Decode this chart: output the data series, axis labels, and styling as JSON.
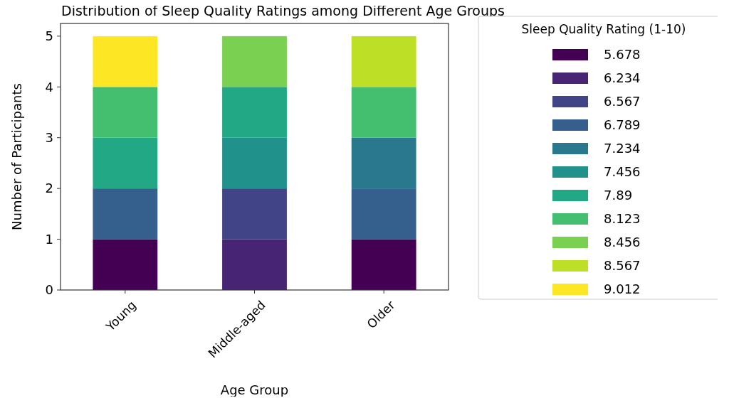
{
  "chart_data": {
    "type": "bar",
    "stacked": true,
    "title": "Distribution of Sleep Quality Ratings among Different Age Groups",
    "xlabel": "Age Group",
    "ylabel": "Number of Participants",
    "legend_title": "Sleep Quality Rating (1-10)",
    "legend": "right",
    "categories": [
      "Young",
      "Middle-aged",
      "Older"
    ],
    "ylim": [
      0,
      5.25
    ],
    "yticks": [
      0,
      1,
      2,
      3,
      4,
      5
    ],
    "series": [
      {
        "name": "5.678",
        "color": "#440154",
        "values": [
          1,
          0,
          1
        ]
      },
      {
        "name": "6.234",
        "color": "#482475",
        "values": [
          0,
          1,
          0
        ]
      },
      {
        "name": "6.567",
        "color": "#414487",
        "values": [
          0,
          1,
          0
        ]
      },
      {
        "name": "6.789",
        "color": "#355f8d",
        "values": [
          1,
          0,
          1
        ]
      },
      {
        "name": "7.234",
        "color": "#2a788e",
        "values": [
          0,
          0,
          1
        ]
      },
      {
        "name": "7.456",
        "color": "#21918c",
        "values": [
          0,
          1,
          0
        ]
      },
      {
        "name": "7.89",
        "color": "#22a884",
        "values": [
          1,
          1,
          0
        ]
      },
      {
        "name": "8.123",
        "color": "#44bf70",
        "values": [
          1,
          0,
          1
        ]
      },
      {
        "name": "8.456",
        "color": "#7ad151",
        "values": [
          0,
          1,
          0
        ]
      },
      {
        "name": "8.567",
        "color": "#bddf26",
        "values": [
          0,
          0,
          1
        ]
      },
      {
        "name": "9.012",
        "color": "#fde725",
        "values": [
          1,
          0,
          0
        ]
      }
    ]
  }
}
